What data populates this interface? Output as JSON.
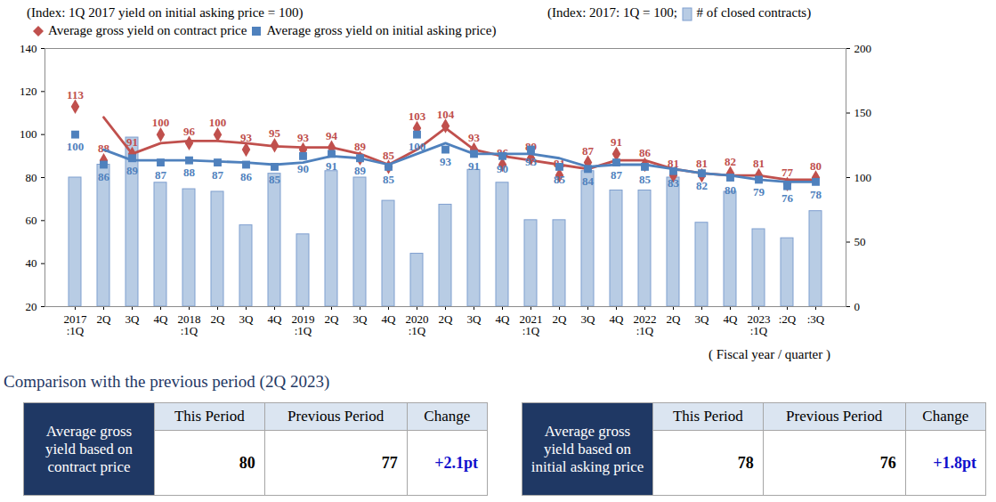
{
  "chart_data": {
    "type": "combo",
    "y_label": "(Index: 1Q 2017 yield on initial asking price = 100)",
    "y2_label": "(Index: 2017: 1Q = 100;",
    "x_label": "( Fiscal year / quarter )",
    "categories": [
      "2017\n:1Q",
      "2Q",
      "3Q",
      "4Q",
      "2018\n:1Q",
      "2Q",
      "3Q",
      "4Q",
      "2019\n:1Q",
      "2Q",
      "3Q",
      "4Q",
      "2020\n:1Q",
      "2Q",
      "3Q",
      "4Q",
      "2021\n:1Q",
      "2Q",
      "3Q",
      "4Q",
      "2022\n:1Q",
      "2Q",
      "3Q",
      "4Q",
      "2023\n:1Q",
      ":2Q",
      ":3Q"
    ],
    "ylim": [
      20,
      140
    ],
    "yticks": [
      20,
      40,
      60,
      80,
      100,
      120,
      140
    ],
    "y2lim": [
      0,
      200
    ],
    "y2ticks": [
      0,
      50,
      100,
      150,
      200
    ],
    "grid": false,
    "data_labels": true,
    "series": [
      {
        "name": "Average gross yield on contract price",
        "type": "line",
        "color": "#c0504d",
        "marker": "diamond",
        "values": [
          113,
          88,
          91,
          100,
          96,
          100,
          93,
          95,
          93,
          94,
          89,
          85,
          103,
          104,
          93,
          86,
          89,
          81,
          87,
          91,
          86,
          81,
          81,
          82,
          81,
          77,
          80
        ],
        "trend": [
          null,
          108,
          91,
          96,
          97,
          97,
          96,
          94.5,
          94,
          94,
          91,
          86,
          93,
          103,
          93,
          90,
          88,
          86,
          84,
          88,
          88,
          84,
          82,
          81,
          81,
          79,
          79
        ]
      },
      {
        "name": "Average gross yield on initial asking price)",
        "type": "line",
        "color": "#4f81bd",
        "marker": "square",
        "values": [
          100,
          86,
          89,
          87,
          88,
          87,
          86,
          85,
          90,
          91,
          89,
          85,
          100,
          93,
          91,
          90,
          93,
          85,
          84,
          87,
          85,
          83,
          82,
          80,
          79,
          76,
          78
        ],
        "trend": [
          null,
          93,
          88,
          88,
          88,
          87.5,
          87,
          86,
          87,
          90,
          89,
          86,
          91,
          96,
          91,
          91,
          91,
          89,
          85,
          86,
          86,
          84,
          82,
          81,
          79,
          78,
          78
        ]
      },
      {
        "name": "# of closed contracts)",
        "type": "bar",
        "axis": "y2",
        "color": "#b8cce4",
        "data_labels": false,
        "values": [
          100,
          110,
          131,
          96,
          91,
          89,
          63,
          103,
          56,
          105,
          100,
          82,
          41,
          79,
          106,
          96,
          67,
          67,
          105,
          90,
          90,
          100,
          65,
          89,
          60,
          53,
          74
        ]
      }
    ]
  },
  "comparison": {
    "title": "Comparison with the previous period (2Q 2023)",
    "tables": [
      {
        "label": "Average gross yield based on contract price",
        "headers": [
          "This Period",
          "Previous Period",
          "Change"
        ],
        "this_period": 80,
        "previous_period": 77,
        "change": "+2.1pt"
      },
      {
        "label": "Average gross yield based on initial asking price",
        "headers": [
          "This Period",
          "Previous Period",
          "Change"
        ],
        "this_period": 78,
        "previous_period": 76,
        "change": "+1.8pt"
      }
    ]
  }
}
